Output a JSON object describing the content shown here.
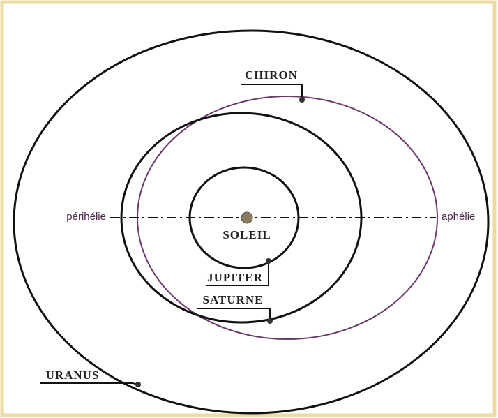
{
  "labels": {
    "chiron": "CHIRON",
    "soleil": "SOLEIL",
    "jupiter": "JUPITER",
    "saturne": "SATURNE",
    "uranus": "URANUS",
    "perihelie": "périhélie",
    "aphelie": "aphélie"
  }
}
